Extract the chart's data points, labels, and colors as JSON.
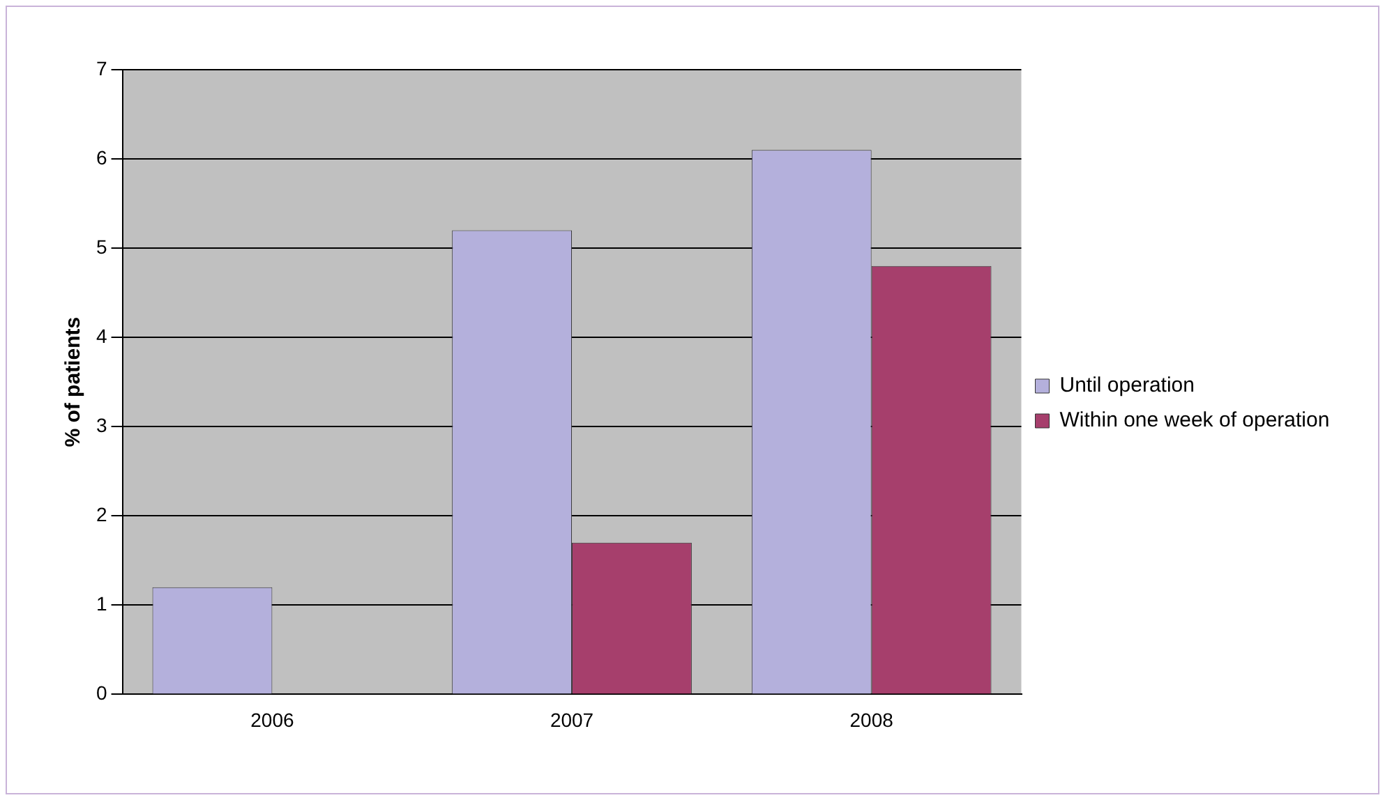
{
  "chart_data": {
    "type": "bar",
    "ylabel": "% of patients",
    "categories": [
      "2006",
      "2007",
      "2008"
    ],
    "series": [
      {
        "name": "Until operation",
        "color": "#b4b0dc",
        "values": [
          1.2,
          5.2,
          6.1
        ]
      },
      {
        "name": "Within one week of operation",
        "color": "#a63f6c",
        "values": [
          null,
          1.7,
          4.8
        ]
      }
    ],
    "ylim": [
      0,
      7
    ],
    "yticks": [
      0,
      1,
      2,
      3,
      4,
      5,
      6,
      7
    ],
    "grid": "y",
    "legend": "right"
  }
}
